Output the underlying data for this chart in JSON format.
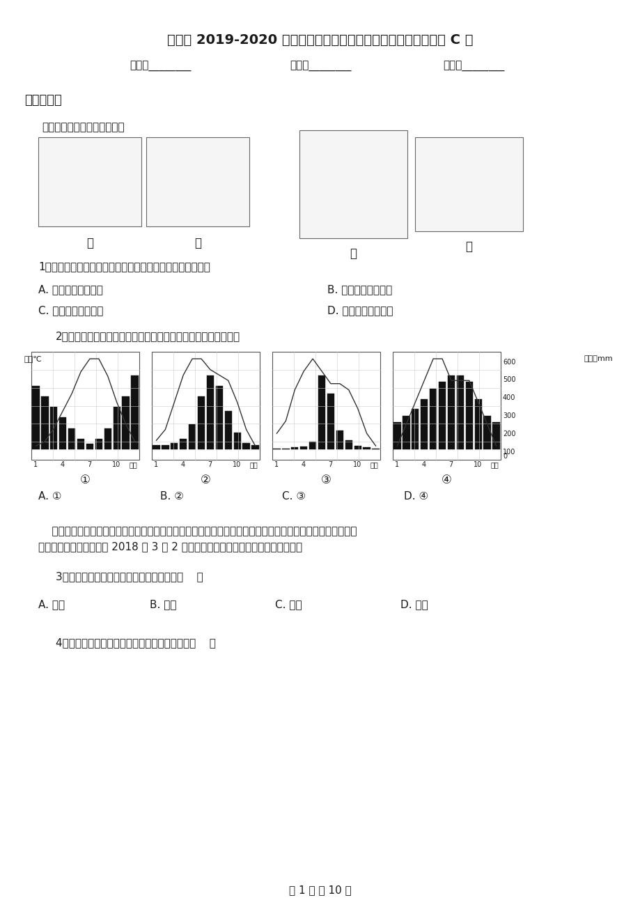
{
  "title": "人教版 2019-2020 学年七年级上学期期末质量检测试卷地理试题 C 卷",
  "name_field": "姓名：________",
  "class_field": "班级：________",
  "score_field": "成绩：________",
  "section1": "一、选择题",
  "intro_text": "读四个地区图，完成下面小题",
  "map_labels": [
    "甲",
    "乙",
    "丙",
    "丁"
  ],
  "q1_text": "1．甲乙丙丁四个地区与其对应的主要气候类型搭配正确的是",
  "q1_A": "A. 甲一热带雨林气候",
  "q1_B": "B. 乙一热带沙漠气候",
  "q1_C": "C. 丙一热带季风气候",
  "q1_D": "D. 丁一热带草原气候",
  "q2_text": "2．下列四幅气温曲线与降水量柱状图中，与甲地区气候相符的是",
  "q2_option_labels": [
    "①",
    "②",
    "③",
    "④"
  ],
  "q2_ans_A": "A. ①",
  "q2_ans_B": "B. ②",
  "q2_ans_C": "C. ③",
  "q2_ans_D": "D. ④",
  "chart_left_label": "气温℃",
  "chart_right_label": "降水量mm",
  "chart_x_label": "月份",
  "movie_line1": "    电影《小萝莉的猴神大叔》讲述了一个拥有虔诚宗教信仰的单纯印度男人帮助一个走失在印度的哑女回到巴基",
  "movie_line2": "斯坦的感人故事，该片于 2018 年 3 月 2 日，在中国大陆上映。据此回答下列问题。",
  "q3_text": "3．印度和巴基斯坦都属于亚洲的哪个地区（    ）",
  "q3_A": "A. 西亚",
  "q3_B": "B. 东亚",
  "q3_C": "C. 南亚",
  "q3_D": "D. 中亚",
  "q4_text": "4．小哑女从印度回巴基斯坦应朝着什么方向走（    ）",
  "footer": "第 1 页 共 10 页",
  "bg_color": "#ffffff",
  "text_color": "#1a1a1a",
  "light_gray": "#dddddd"
}
